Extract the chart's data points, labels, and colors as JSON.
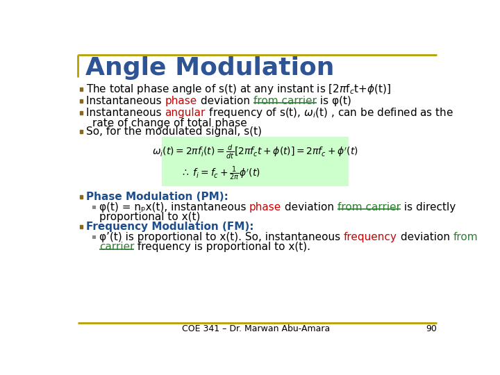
{
  "title": "Angle Modulation",
  "title_color": "#2F5496",
  "title_fontsize": 26,
  "background_color": "#FFFFFF",
  "border_color": "#B8A000",
  "bullet_color": "#8B6914",
  "formula_box_color": "#CCFFCC",
  "pm_header_color": "#1E4D8C",
  "fm_header_color": "#1E4D8C",
  "red_color": "#CC0000",
  "green_color": "#2E7D32",
  "black_color": "#000000",
  "footer_text": "COE 341 – Dr. Marwan Abu-Amara",
  "footer_page": "90"
}
